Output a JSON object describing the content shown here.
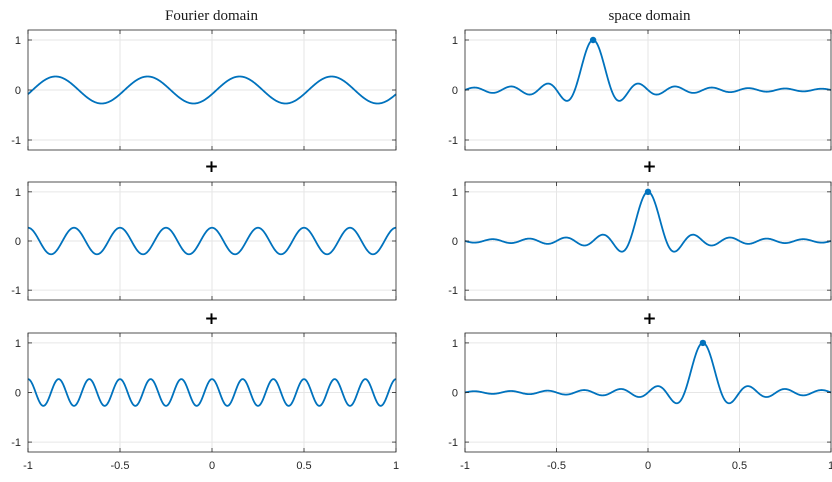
{
  "column_titles": [
    "Fourier domain",
    "space domain"
  ],
  "separator": "+",
  "line_color": "#0072BD",
  "axis_color": "#262626",
  "grid_color": "#e6e6e6",
  "chart_data": [
    {
      "type": "line",
      "panel": "fourier-1",
      "title": "Fourier domain",
      "xlim": [
        -1,
        1
      ],
      "ylim": [
        -1.2,
        1.2
      ],
      "x_ticks": [],
      "y_ticks": [
        "1",
        "0",
        "-1"
      ],
      "grid": true,
      "series": [
        {
          "function": "cosine",
          "amplitude": 0.27,
          "frequency": 2,
          "phase_at_x": -0.85
        }
      ]
    },
    {
      "type": "line",
      "panel": "fourier-2",
      "title": "",
      "xlim": [
        -1,
        1
      ],
      "ylim": [
        -1.2,
        1.2
      ],
      "x_ticks": [],
      "y_ticks": [
        "1",
        "0",
        "-1"
      ],
      "grid": true,
      "series": [
        {
          "function": "cosine",
          "amplitude": 0.27,
          "frequency": 4,
          "phase_at_x": 0.0
        }
      ]
    },
    {
      "type": "line",
      "panel": "fourier-3",
      "title": "",
      "xlim": [
        -1,
        1
      ],
      "ylim": [
        -1.2,
        1.2
      ],
      "x_ticks": [
        "-1",
        "-0.5",
        "0",
        "0.5",
        "1"
      ],
      "y_ticks": [
        "1",
        "0",
        "-1"
      ],
      "grid": true,
      "series": [
        {
          "function": "cosine",
          "amplitude": 0.27,
          "frequency": 6,
          "phase_at_x": 0.0
        }
      ]
    },
    {
      "type": "line",
      "panel": "space-1",
      "title": "space domain",
      "xlim": [
        -1,
        1
      ],
      "ylim": [
        -1.2,
        1.2
      ],
      "x_ticks": [],
      "y_ticks": [
        "1",
        "0",
        "-1"
      ],
      "grid": true,
      "series": [
        {
          "function": "sinc",
          "center": -0.3,
          "peak": 1,
          "zero_spacing": 0.1
        }
      ],
      "marker": {
        "x": -0.3,
        "y": 1
      }
    },
    {
      "type": "line",
      "panel": "space-2",
      "title": "",
      "xlim": [
        -1,
        1
      ],
      "ylim": [
        -1.2,
        1.2
      ],
      "x_ticks": [],
      "y_ticks": [
        "1",
        "0",
        "-1"
      ],
      "grid": true,
      "series": [
        {
          "function": "sinc",
          "center": 0.0,
          "peak": 1,
          "zero_spacing": 0.1
        }
      ],
      "marker": {
        "x": 0.0,
        "y": 1
      }
    },
    {
      "type": "line",
      "panel": "space-3",
      "title": "",
      "xlim": [
        -1,
        1
      ],
      "ylim": [
        -1.2,
        1.2
      ],
      "x_ticks": [
        "-1",
        "-0.5",
        "0",
        "0.5",
        "1"
      ],
      "y_ticks": [
        "1",
        "0",
        "-1"
      ],
      "grid": true,
      "series": [
        {
          "function": "sinc",
          "center": 0.3,
          "peak": 1,
          "zero_spacing": 0.1
        }
      ],
      "marker": {
        "x": 0.3,
        "y": 1
      }
    }
  ]
}
